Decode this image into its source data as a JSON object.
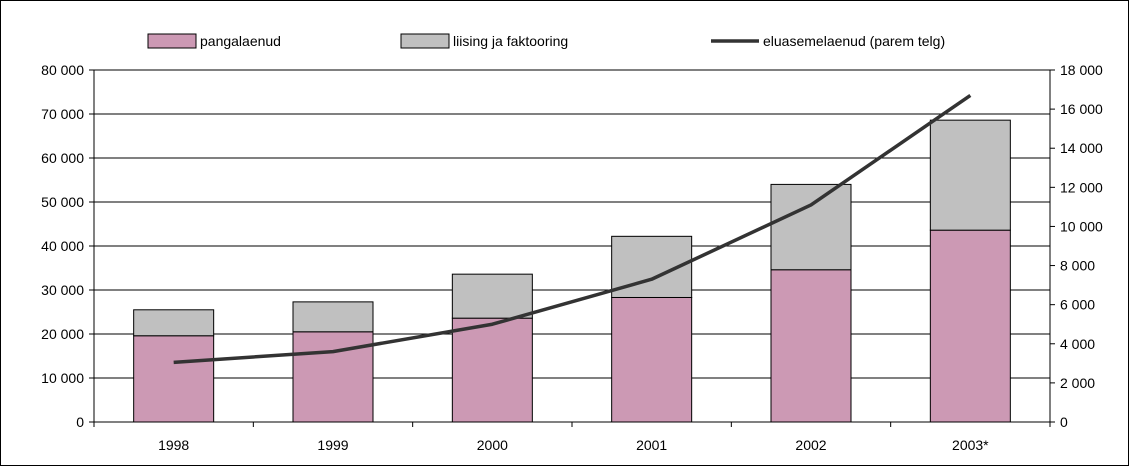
{
  "chart_data": {
    "type": "bar",
    "stacked": true,
    "categories": [
      "1998",
      "1999",
      "2000",
      "2001",
      "2002",
      "2003*"
    ],
    "series": [
      {
        "name": "pangalaenud",
        "kind": "bar",
        "axis": "left",
        "color": "#cc99b4",
        "values": [
          19600,
          20500,
          23600,
          28300,
          34600,
          43600
        ]
      },
      {
        "name": "liising ja faktooring",
        "kind": "bar",
        "axis": "left",
        "color": "#c0c0c0",
        "values": [
          5900,
          6800,
          10000,
          13900,
          19400,
          25000
        ]
      },
      {
        "name": "eluasemelaenud (parem telg)",
        "kind": "line",
        "axis": "right",
        "color": "#333333",
        "values": [
          3050,
          3600,
          5000,
          7300,
          11100,
          16700
        ]
      }
    ],
    "y_left": {
      "range": [
        0,
        80000
      ],
      "ticks": [
        0,
        10000,
        20000,
        30000,
        40000,
        50000,
        60000,
        70000,
        80000
      ],
      "tick_labels": [
        "0",
        "10 000",
        "20 000",
        "30 000",
        "40 000",
        "50 000",
        "60 000",
        "70 000",
        "80 000"
      ]
    },
    "y_right": {
      "range": [
        0,
        18000
      ],
      "ticks": [
        0,
        2000,
        4000,
        6000,
        8000,
        10000,
        12000,
        14000,
        16000,
        18000
      ],
      "tick_labels": [
        "0",
        "2 000",
        "4 000",
        "6 000",
        "8 000",
        "10 000",
        "12 000",
        "14 000",
        "16 000",
        "18 000"
      ]
    },
    "grid": true,
    "legend": "top"
  }
}
